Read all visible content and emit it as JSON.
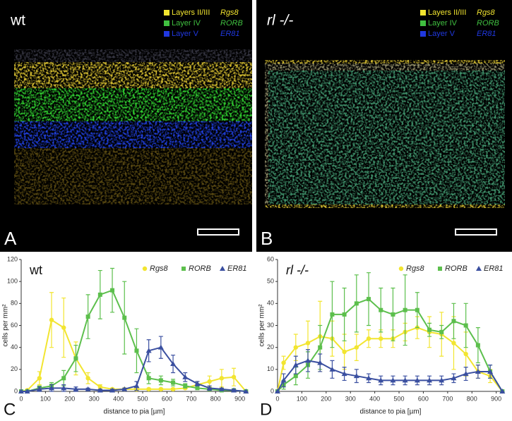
{
  "images": [
    {
      "panel_label": "A",
      "title": "wt",
      "legend": [
        {
          "layer": "Layers II/III",
          "gene": "Rgs8"
        },
        {
          "layer": "Layer IV",
          "gene": "RORB"
        },
        {
          "layer": "Layer V",
          "gene": "ER81"
        }
      ]
    },
    {
      "panel_label": "B",
      "title": "rl -/-",
      "legend": [
        {
          "layer": "Layers II/III",
          "gene": "Rgs8"
        },
        {
          "layer": "Layer IV",
          "gene": "RORB"
        },
        {
          "layer": "Layer V",
          "gene": "ER81"
        }
      ]
    }
  ],
  "chart_data": [
    {
      "type": "line",
      "title": "wt",
      "panel_label": "C",
      "x_label": "distance to pia [µm]",
      "y_label": "cells per mm²",
      "x": [
        0,
        25,
        75,
        125,
        175,
        225,
        275,
        325,
        375,
        425,
        475,
        525,
        575,
        625,
        675,
        725,
        775,
        825,
        875,
        925
      ],
      "xlim": [
        0,
        930
      ],
      "xticks": [
        0,
        100,
        200,
        300,
        400,
        500,
        600,
        700,
        800,
        900
      ],
      "ylim": [
        0,
        120
      ],
      "yticks": [
        0,
        20,
        40,
        60,
        80,
        100,
        120
      ],
      "series": [
        {
          "name": "Rgs8",
          "color": "#f2e530",
          "values": [
            0,
            1,
            12,
            65,
            58,
            30,
            12,
            4,
            2,
            2,
            2,
            2,
            2,
            2,
            3,
            6,
            9,
            12,
            13,
            0
          ],
          "errors": [
            0,
            1,
            6,
            25,
            27,
            15,
            5,
            2,
            1,
            1,
            1,
            1,
            1,
            1,
            1,
            3,
            5,
            8,
            8,
            0
          ]
        },
        {
          "name": "RORB",
          "color": "#5cbf4c",
          "values": [
            0,
            0,
            3,
            5,
            12,
            30,
            68,
            88,
            92,
            67,
            37,
            12,
            10,
            8,
            5,
            3,
            2,
            1,
            1,
            0
          ],
          "errors": [
            0,
            0,
            2,
            3,
            7,
            12,
            20,
            22,
            20,
            33,
            20,
            5,
            4,
            3,
            2,
            1,
            1,
            1,
            1,
            0
          ]
        },
        {
          "name": "ER81",
          "color": "#3a4fa0",
          "values": [
            0,
            0,
            2,
            3,
            3,
            2,
            2,
            1,
            1,
            2,
            5,
            37,
            40,
            25,
            13,
            7,
            3,
            2,
            1,
            0
          ],
          "errors": [
            0,
            0,
            2,
            3,
            3,
            2,
            1,
            1,
            1,
            1,
            4,
            10,
            10,
            8,
            4,
            2,
            2,
            1,
            1,
            0
          ]
        }
      ]
    },
    {
      "type": "line",
      "title": "rl -/-",
      "panel_label": "D",
      "x_label": "distance to pia [µm]",
      "y_label": "cells per mm²",
      "x": [
        0,
        25,
        75,
        125,
        175,
        225,
        275,
        325,
        375,
        425,
        475,
        525,
        575,
        625,
        675,
        725,
        775,
        825,
        875,
        925
      ],
      "xlim": [
        0,
        930
      ],
      "xticks": [
        0,
        100,
        200,
        300,
        400,
        500,
        600,
        700,
        800,
        900
      ],
      "ylim": [
        0,
        60
      ],
      "yticks": [
        0,
        10,
        20,
        30,
        40,
        50,
        60
      ],
      "series": [
        {
          "name": "Rgs8",
          "color": "#f2e530",
          "values": [
            0,
            13,
            20,
            22,
            25,
            24,
            18,
            20,
            24,
            24,
            24,
            27,
            29,
            27,
            26,
            22,
            17,
            9,
            7,
            0
          ],
          "errors": [
            0,
            3,
            6,
            10,
            16,
            8,
            8,
            6,
            4,
            4,
            4,
            4,
            5,
            7,
            10,
            12,
            10,
            3,
            3,
            0
          ]
        },
        {
          "name": "RORB",
          "color": "#5cbf4c",
          "values": [
            0,
            3,
            7,
            12,
            20,
            35,
            35,
            40,
            42,
            37,
            35,
            37,
            37,
            28,
            27,
            32,
            30,
            21,
            9,
            0
          ],
          "errors": [
            0,
            2,
            4,
            6,
            10,
            15,
            12,
            13,
            12,
            10,
            12,
            16,
            8,
            3,
            3,
            8,
            10,
            8,
            3,
            0
          ]
        },
        {
          "name": "ER81",
          "color": "#3a4fa0",
          "values": [
            0,
            5,
            12,
            14,
            13,
            10,
            8,
            7,
            6,
            5,
            5,
            5,
            5,
            5,
            5,
            6,
            8,
            9,
            9,
            0
          ],
          "errors": [
            0,
            3,
            4,
            5,
            4,
            4,
            3,
            3,
            2,
            2,
            2,
            2,
            2,
            2,
            2,
            2,
            3,
            3,
            3,
            0
          ]
        }
      ]
    }
  ]
}
